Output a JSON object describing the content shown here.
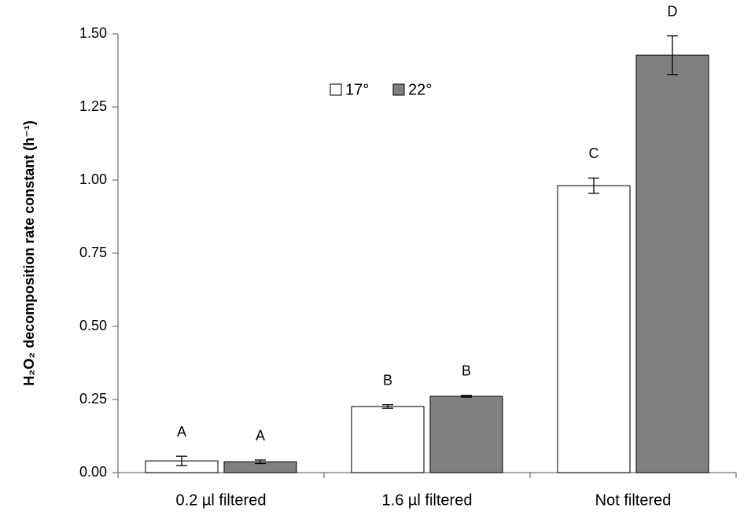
{
  "chart_data": {
    "type": "bar",
    "y_label": "H₂O₂ decomposition rate constant  (h⁻¹)",
    "categories": [
      "0.2 µl filtered",
      "1.6 µl filtered",
      "Not filtered"
    ],
    "series": [
      {
        "name": "17°",
        "color": "#ffffff",
        "values": [
          0.04,
          0.226,
          0.981
        ],
        "errors": [
          0.016,
          0.006,
          0.026
        ],
        "letters": [
          "A",
          "B",
          "C"
        ]
      },
      {
        "name": "22°",
        "color": "#808080",
        "values": [
          0.037,
          0.261,
          1.427
        ],
        "errors": [
          0.006,
          0.003,
          0.066
        ],
        "letters": [
          "A",
          "B",
          "D"
        ]
      }
    ],
    "ylim": [
      0,
      1.5
    ],
    "yticks": [
      {
        "value": 0,
        "label": "0.00"
      },
      {
        "value": 0.25,
        "label": "0.25"
      },
      {
        "value": 0.5,
        "label": "0.50"
      },
      {
        "value": 0.75,
        "label": "0.75"
      },
      {
        "value": 1,
        "label": "1.00"
      },
      {
        "value": 1.25,
        "label": "1.25"
      },
      {
        "value": 1.5,
        "label": "1.50"
      }
    ],
    "grid": false
  }
}
